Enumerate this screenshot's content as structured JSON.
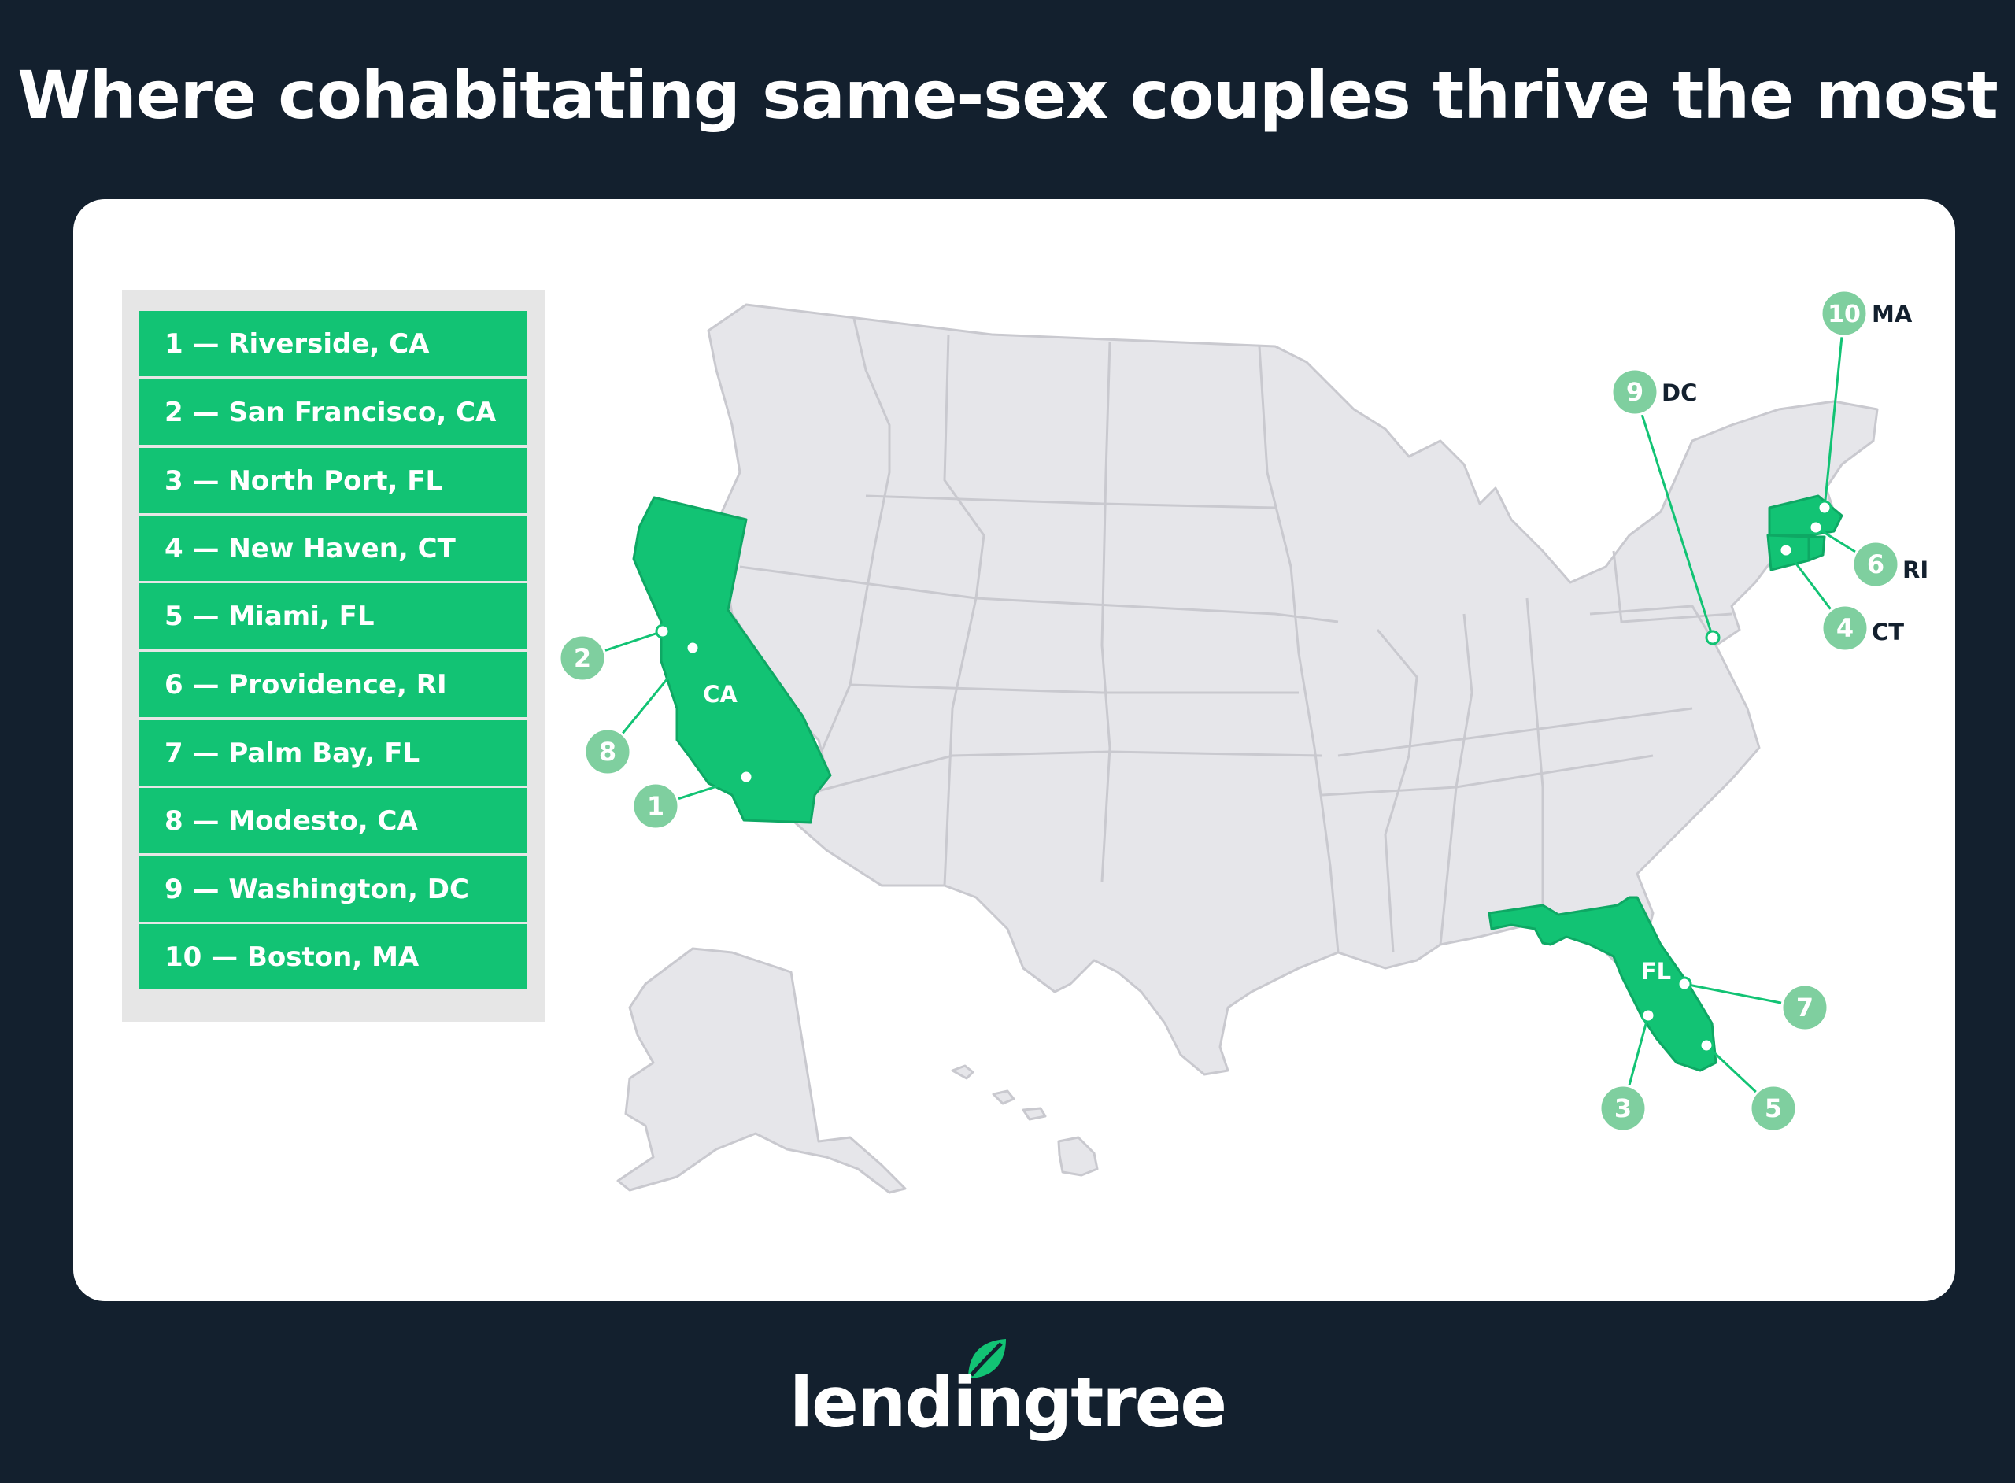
{
  "title": "Where cohabitating same-sex couples thrive the most",
  "legend": [
    "1 — Riverside, CA",
    "2 — San Francisco, CA",
    "3 — North Port, FL",
    "4 — New Haven, CT",
    "5 — Miami, FL",
    "6 — Providence, RI",
    "7 — Palm Bay, FL",
    "8 — Modesto, CA",
    "9 — Washington, DC",
    "10 — Boston, MA"
  ],
  "map": {
    "highlighted_states": [
      "CA",
      "FL",
      "MA",
      "RI",
      "CT"
    ],
    "state_labels": {
      "california": "CA",
      "florida": "FL"
    },
    "markers": [
      {
        "rank": "1",
        "city": "Riverside",
        "state": "CA"
      },
      {
        "rank": "2",
        "city": "San Francisco",
        "state": "CA"
      },
      {
        "rank": "3",
        "city": "North Port",
        "state": "FL"
      },
      {
        "rank": "4",
        "city": "New Haven",
        "state": "CT",
        "tag": "CT"
      },
      {
        "rank": "5",
        "city": "Miami",
        "state": "FL"
      },
      {
        "rank": "6",
        "city": "Providence",
        "state": "RI",
        "tag": "RI"
      },
      {
        "rank": "7",
        "city": "Palm Bay",
        "state": "FL"
      },
      {
        "rank": "8",
        "city": "Modesto",
        "state": "CA"
      },
      {
        "rank": "9",
        "city": "Washington",
        "state": "DC",
        "tag": "DC"
      },
      {
        "rank": "10",
        "city": "Boston",
        "state": "MA",
        "tag": "MA"
      }
    ]
  },
  "colors": {
    "background": "#13202e",
    "card": "#ffffff",
    "highlight": "#12c374",
    "marker": "#7fcf9f",
    "land": "#e6e6ea",
    "border": "#c9c9cf"
  },
  "logo": {
    "text": "lendingtree",
    "icon": "leaf-icon"
  }
}
